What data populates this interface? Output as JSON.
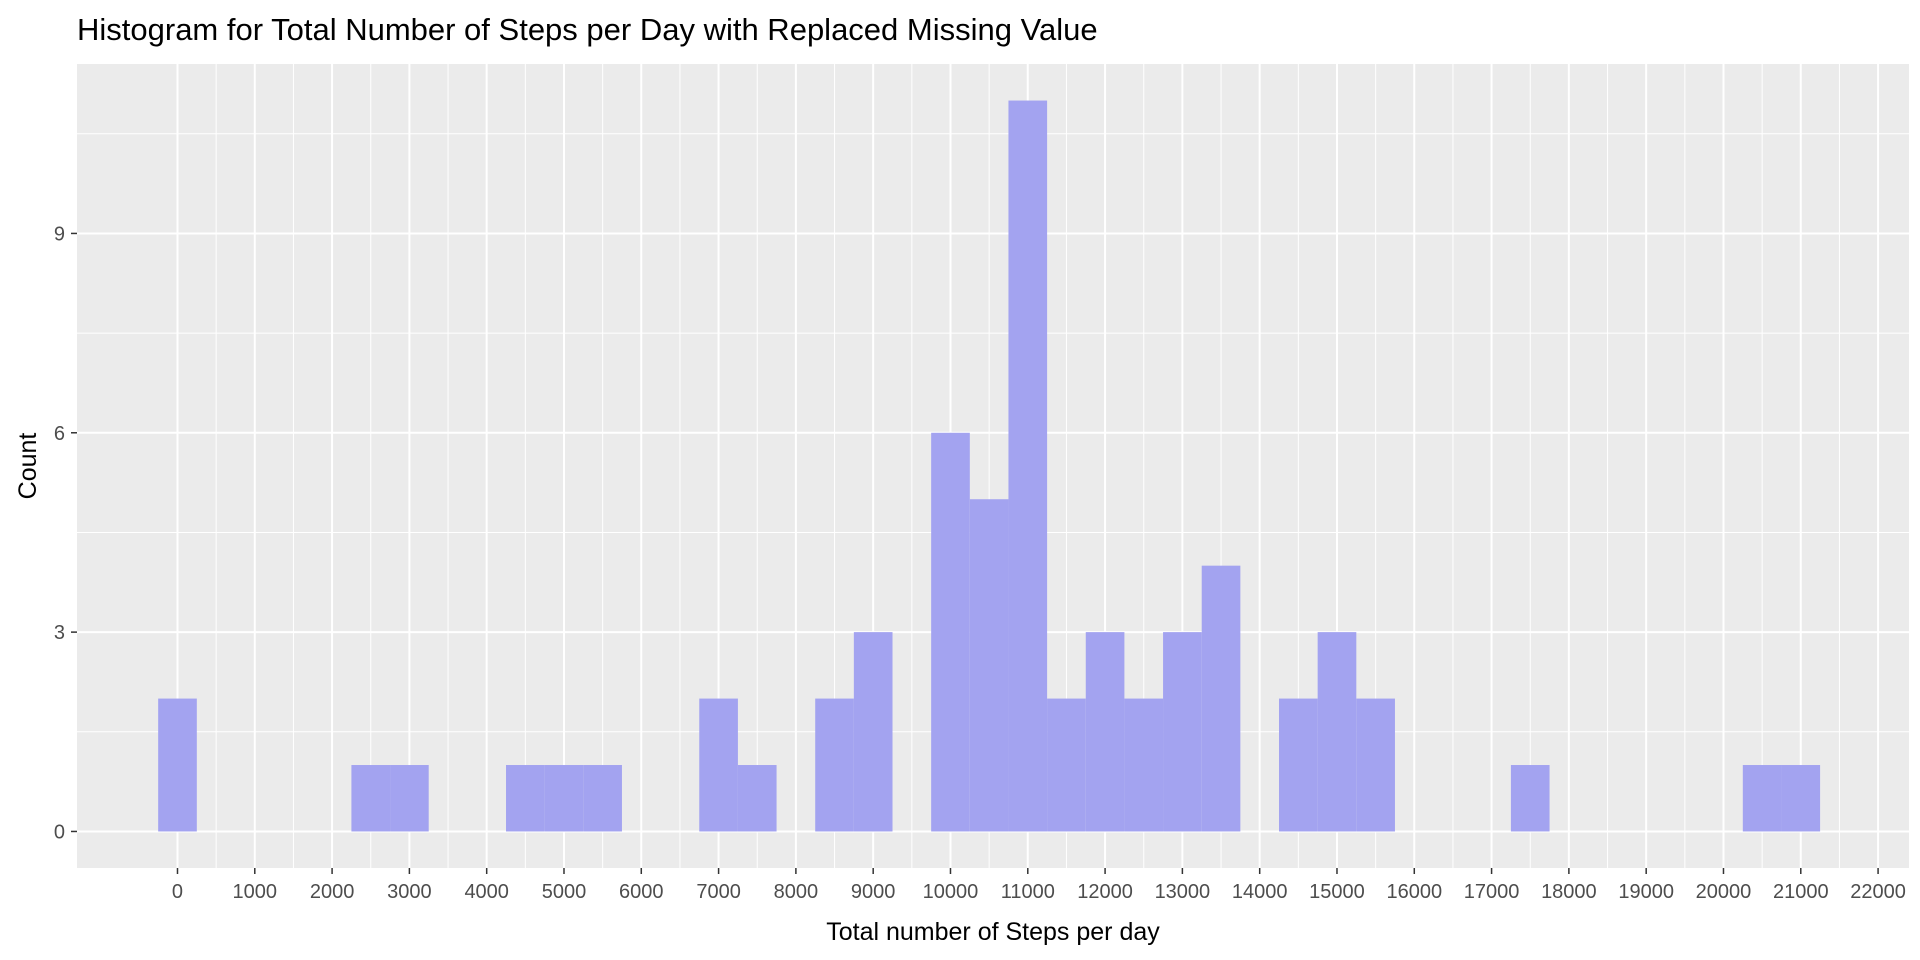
{
  "chart_data": {
    "type": "bar",
    "title": "Histogram for Total Number of Steps per Day with Replaced Missing Value",
    "xlabel": "Total number of Steps per day",
    "ylabel": "Count",
    "binwidth": 500,
    "xlim": [
      -1300,
      22400
    ],
    "ylim": [
      -0.55,
      11.55
    ],
    "x_ticks": [
      0,
      1000,
      2000,
      3000,
      4000,
      5000,
      6000,
      7000,
      8000,
      9000,
      10000,
      11000,
      12000,
      13000,
      14000,
      15000,
      16000,
      17000,
      18000,
      19000,
      20000,
      21000,
      22000
    ],
    "x_tick_labels": [
      "0",
      "1000",
      "2000",
      "3000",
      "4000",
      "5000",
      "6000",
      "7000",
      "8000",
      "9000",
      "10000",
      "11000",
      "12000",
      "13000",
      "14000",
      "15000",
      "16000",
      "17000",
      "18000",
      "19000",
      "20000",
      "21000",
      "22000"
    ],
    "y_ticks": [
      0,
      3,
      6,
      9
    ],
    "y_tick_labels": [
      "0",
      "3",
      "6",
      "9"
    ],
    "grid": true,
    "bar_color": "#a3a3f0",
    "panel_background": "#ebebeb",
    "grid_color": "#ffffff",
    "bins": [
      {
        "x": 0,
        "count": 2
      },
      {
        "x": 2500,
        "count": 1
      },
      {
        "x": 3000,
        "count": 1
      },
      {
        "x": 4500,
        "count": 1
      },
      {
        "x": 5000,
        "count": 1
      },
      {
        "x": 5500,
        "count": 1
      },
      {
        "x": 7000,
        "count": 2
      },
      {
        "x": 7500,
        "count": 1
      },
      {
        "x": 8500,
        "count": 2
      },
      {
        "x": 9000,
        "count": 3
      },
      {
        "x": 10000,
        "count": 6
      },
      {
        "x": 10500,
        "count": 5
      },
      {
        "x": 11000,
        "count": 11
      },
      {
        "x": 11500,
        "count": 2
      },
      {
        "x": 12000,
        "count": 3
      },
      {
        "x": 12500,
        "count": 2
      },
      {
        "x": 13000,
        "count": 3
      },
      {
        "x": 13500,
        "count": 4
      },
      {
        "x": 14500,
        "count": 2
      },
      {
        "x": 15000,
        "count": 3
      },
      {
        "x": 15500,
        "count": 2
      },
      {
        "x": 17500,
        "count": 1
      },
      {
        "x": 20500,
        "count": 1
      },
      {
        "x": 21000,
        "count": 1
      }
    ]
  }
}
